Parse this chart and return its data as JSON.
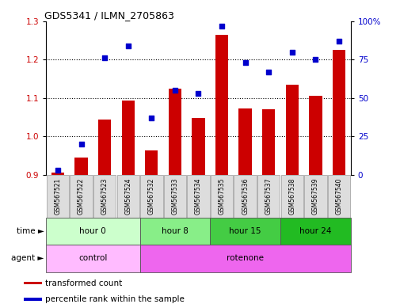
{
  "title": "GDS5341 / ILMN_2705863",
  "samples": [
    "GSM567521",
    "GSM567522",
    "GSM567523",
    "GSM567524",
    "GSM567532",
    "GSM567533",
    "GSM567534",
    "GSM567535",
    "GSM567536",
    "GSM567537",
    "GSM567538",
    "GSM567539",
    "GSM567540"
  ],
  "bar_values": [
    0.905,
    0.945,
    1.045,
    1.093,
    0.963,
    1.125,
    1.048,
    1.265,
    1.073,
    1.07,
    1.135,
    1.105,
    1.225
  ],
  "dot_values_pct": [
    3,
    20,
    76,
    84,
    37,
    55,
    53,
    97,
    73,
    67,
    80,
    75,
    87
  ],
  "ylim_left": [
    0.9,
    1.3
  ],
  "ylim_right": [
    0,
    100
  ],
  "yticks_left": [
    0.9,
    1.0,
    1.1,
    1.2,
    1.3
  ],
  "yticks_right": [
    0,
    25,
    50,
    75,
    100
  ],
  "bar_color": "#cc0000",
  "dot_color": "#0000cc",
  "bar_width": 0.55,
  "time_groups": [
    {
      "label": "hour 0",
      "start": 0,
      "end": 4,
      "color": "#ccffcc"
    },
    {
      "label": "hour 8",
      "start": 4,
      "end": 7,
      "color": "#88ee88"
    },
    {
      "label": "hour 15",
      "start": 7,
      "end": 10,
      "color": "#44cc44"
    },
    {
      "label": "hour 24",
      "start": 10,
      "end": 13,
      "color": "#22bb22"
    }
  ],
  "agent_groups": [
    {
      "label": "control",
      "start": 0,
      "end": 4,
      "color": "#ffbbff"
    },
    {
      "label": "rotenone",
      "start": 4,
      "end": 13,
      "color": "#ee66ee"
    }
  ],
  "time_label": "time",
  "agent_label": "agent",
  "legend_items": [
    {
      "color": "#cc0000",
      "label": "transformed count"
    },
    {
      "color": "#0000cc",
      "label": "percentile rank within the sample"
    }
  ],
  "ylabel_left_color": "#cc0000",
  "ylabel_right_color": "#0000cc",
  "sample_bg": "#dddddd",
  "grid_dotted_ticks": [
    1.0,
    1.1,
    1.2
  ]
}
